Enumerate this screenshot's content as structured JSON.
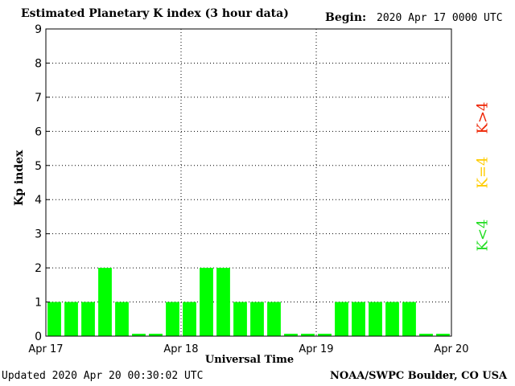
{
  "chart_data": {
    "type": "bar",
    "title": "Estimated Planetary K index (3 hour data)",
    "begin_label": "Begin:",
    "begin_value": "2020 Apr 17 0000 UTC",
    "ylabel": "Kp index",
    "xlabel": "Universal Time",
    "ylim": [
      0,
      9
    ],
    "yticks": [
      "0",
      "1",
      "2",
      "3",
      "4",
      "5",
      "6",
      "7",
      "8",
      "9"
    ],
    "xtick_labels": [
      "Apr 17",
      "Apr 18",
      "Apr 19",
      "Apr 20"
    ],
    "values": [
      1,
      1,
      1,
      2,
      1,
      0,
      0,
      1,
      1,
      2,
      2,
      1,
      1,
      1,
      0,
      0,
      0,
      1,
      1,
      1,
      1,
      1,
      0,
      0
    ],
    "bar_color": "#00ff00",
    "grid": true,
    "legend": {
      "placement": "right",
      "items": [
        {
          "label": "K<4",
          "color": "#22dd22"
        },
        {
          "label": "K=4",
          "color": "#ffcc00"
        },
        {
          "label": "K>4",
          "color": "#ee2200"
        }
      ]
    }
  },
  "footer": {
    "updated": "Updated 2020 Apr 20 00:30:02 UTC",
    "source": "NOAA/SWPC Boulder, CO USA"
  }
}
